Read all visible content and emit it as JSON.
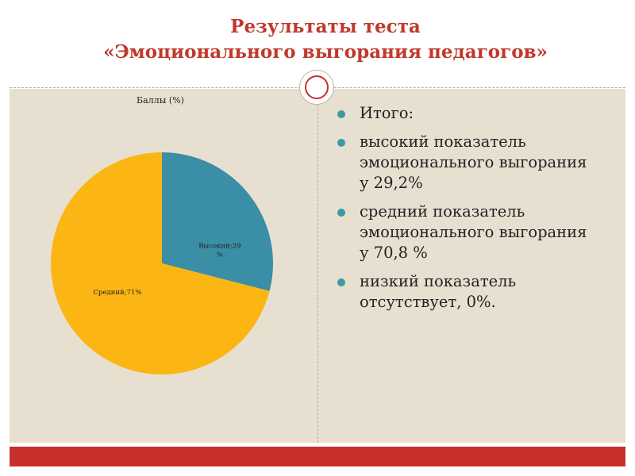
{
  "slide": {
    "title_line1": "Результаты теста",
    "title_line2": "«Эмоционального выгорания педагогов»"
  },
  "bullets": [
    "Итого:",
    "высокий показатель эмоционального выгорания у 29,2%",
    "средний показатель эмоционального выгорания у 70,8 %",
    "низкий показатель отсутствует,  0%."
  ],
  "colors": {
    "title": "#c0392b",
    "accent_bar": "#c8312b",
    "content_bg": "#e7e0d1",
    "bullet_dot": "#3b9aa3"
  },
  "chart_data": {
    "type": "pie",
    "title": "Баллы (%)",
    "slices": [
      {
        "label": "Высокий",
        "value": 29,
        "display": "Высокий;29 %",
        "color": "#3a8fa6"
      },
      {
        "label": "Средний",
        "value": 71,
        "display": "Средний;71%",
        "color": "#fbb613"
      }
    ]
  }
}
